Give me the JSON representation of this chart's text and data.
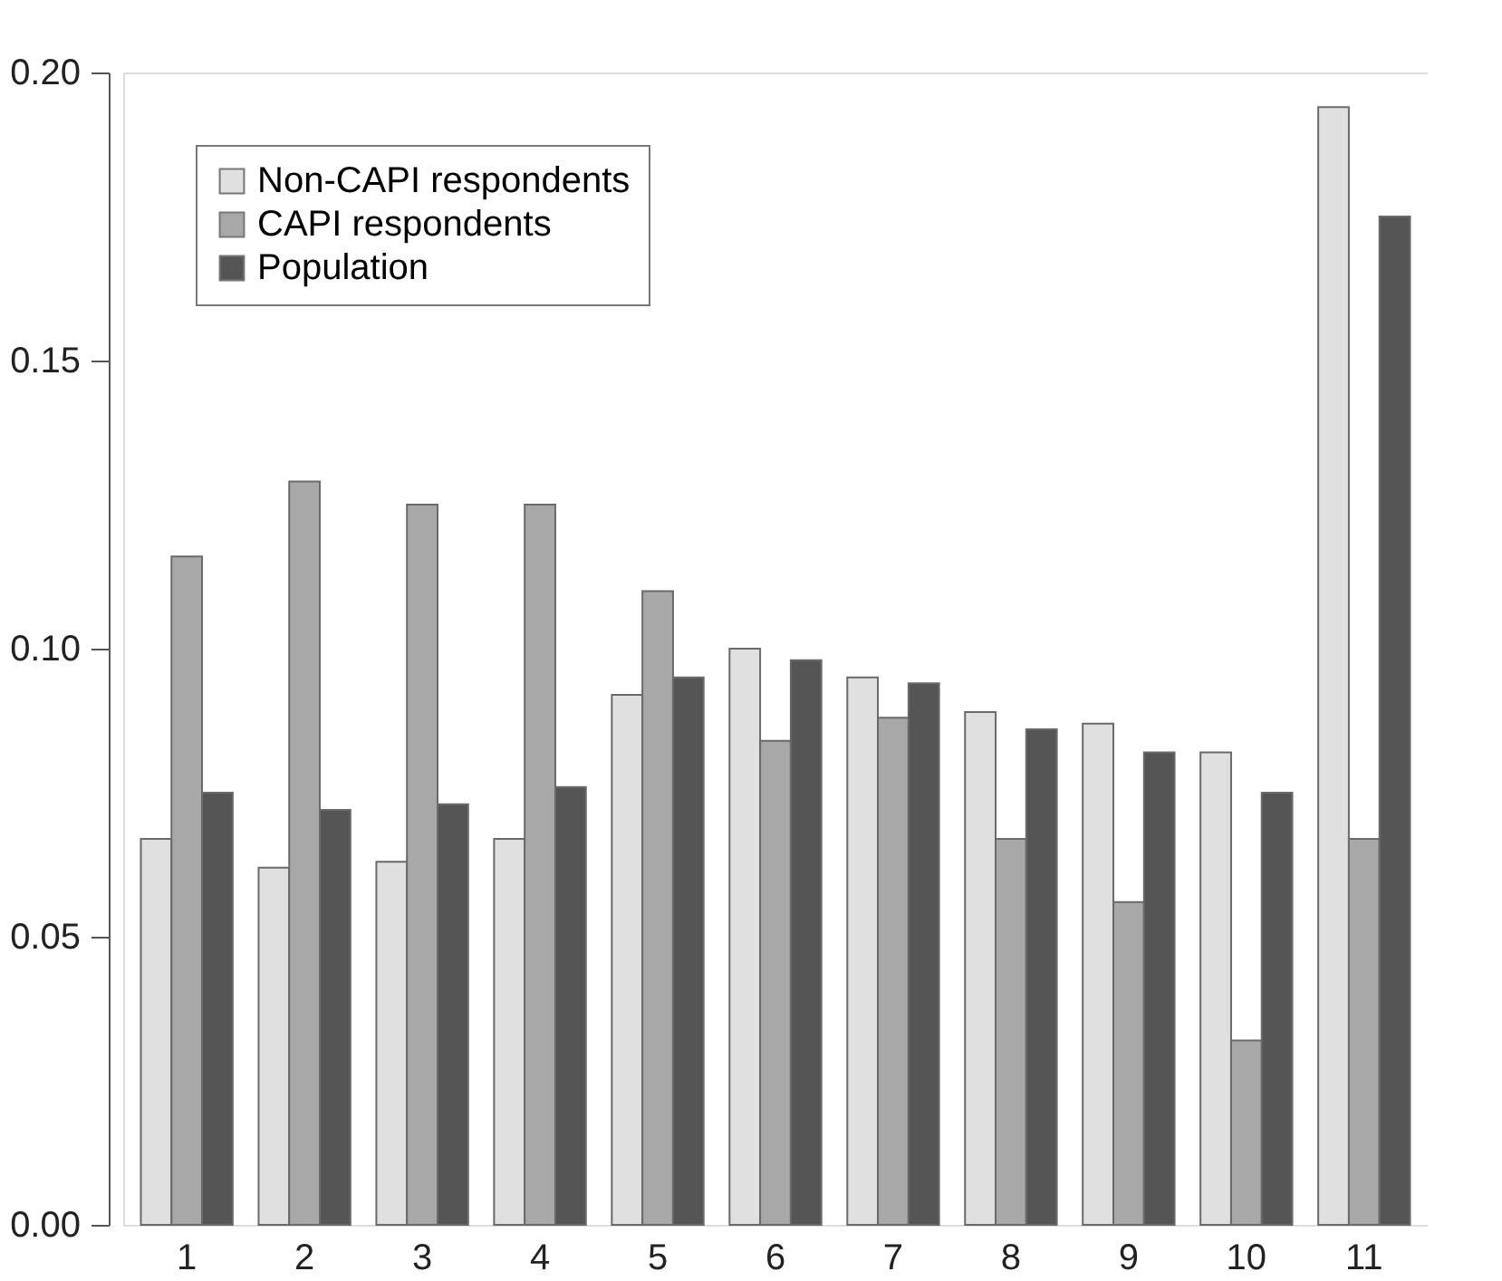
{
  "chart_data": {
    "type": "bar",
    "categories": [
      "1",
      "2",
      "3",
      "4",
      "5",
      "6",
      "7",
      "8",
      "9",
      "10",
      "11"
    ],
    "series": [
      {
        "name": "Non-CAPI respondents",
        "color": "#e0e0e0",
        "values": [
          0.067,
          0.062,
          0.063,
          0.067,
          0.092,
          0.1,
          0.095,
          0.089,
          0.087,
          0.082,
          0.194
        ]
      },
      {
        "name": "CAPI respondents",
        "color": "#a8a8a8",
        "values": [
          0.116,
          0.129,
          0.125,
          0.125,
          0.11,
          0.084,
          0.088,
          0.067,
          0.056,
          0.032,
          0.067
        ]
      },
      {
        "name": "Population",
        "color": "#555555",
        "values": [
          0.075,
          0.072,
          0.073,
          0.076,
          0.095,
          0.098,
          0.094,
          0.086,
          0.082,
          0.075,
          0.175
        ]
      }
    ],
    "ylim": [
      0,
      0.2
    ],
    "yticks": [
      {
        "value": 0,
        "label": "0.00"
      },
      {
        "value": 0.05,
        "label": "0.05"
      },
      {
        "value": 0.1,
        "label": "0.10"
      },
      {
        "value": 0.15,
        "label": "0.15"
      },
      {
        "value": 0.2,
        "label": "0.20"
      }
    ],
    "grid": false,
    "legend": "top left"
  }
}
